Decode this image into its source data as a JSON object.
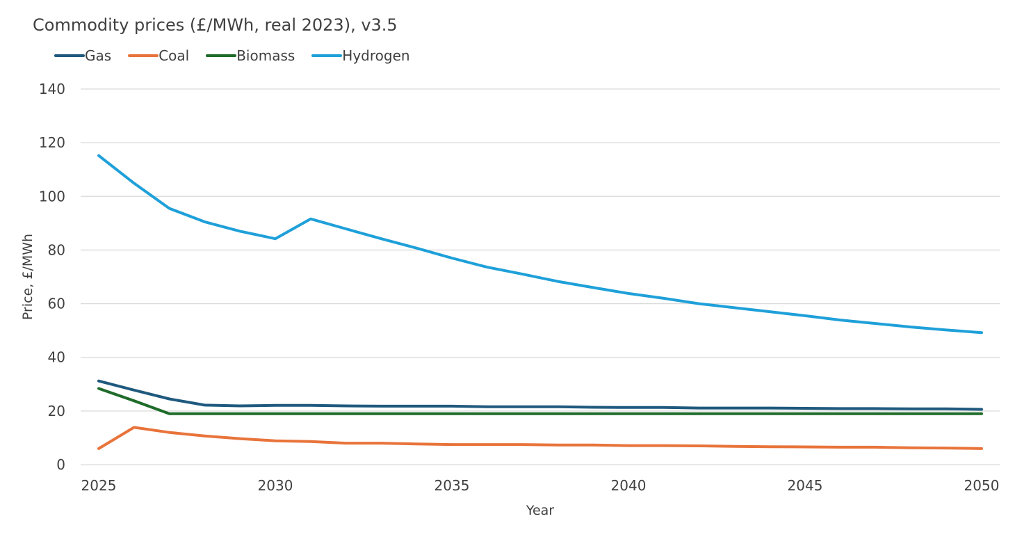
{
  "chart_data": {
    "type": "line",
    "title": "Commodity prices (£/MWh, real 2023), v3.5",
    "xlabel": "Year",
    "ylabel": "Price, £/MWh",
    "xlim": [
      2025,
      2050
    ],
    "ylim": [
      0,
      140
    ],
    "xticks": [
      2025,
      2030,
      2035,
      2040,
      2045,
      2050
    ],
    "yticks": [
      0,
      20,
      40,
      60,
      80,
      100,
      120,
      140
    ],
    "grid": "horizontal",
    "legend_position": "top-left",
    "x": [
      2025,
      2026,
      2027,
      2028,
      2029,
      2030,
      2031,
      2032,
      2033,
      2034,
      2035,
      2036,
      2037,
      2038,
      2039,
      2040,
      2041,
      2042,
      2043,
      2044,
      2045,
      2046,
      2047,
      2048,
      2049,
      2050
    ],
    "series": [
      {
        "name": "Gas",
        "color": "#1f5a7e",
        "values": [
          31.2,
          27.8,
          24.5,
          22.2,
          21.9,
          22.1,
          22.1,
          21.9,
          21.8,
          21.8,
          21.8,
          21.6,
          21.6,
          21.6,
          21.4,
          21.3,
          21.3,
          21.1,
          21.1,
          21.1,
          21.0,
          20.9,
          20.9,
          20.8,
          20.8,
          20.6
        ]
      },
      {
        "name": "Coal",
        "color": "#e8743b",
        "values": [
          6.0,
          13.9,
          12.0,
          10.7,
          9.7,
          8.9,
          8.6,
          8.0,
          8.0,
          7.7,
          7.5,
          7.5,
          7.5,
          7.3,
          7.3,
          7.1,
          7.1,
          7.0,
          6.8,
          6.7,
          6.6,
          6.5,
          6.5,
          6.3,
          6.2,
          6.0
        ]
      },
      {
        "name": "Biomass",
        "color": "#1e6b2a",
        "values": [
          28.4,
          23.8,
          19.0,
          19.0,
          19.0,
          19.0,
          19.0,
          19.0,
          19.0,
          19.0,
          19.0,
          19.0,
          19.0,
          19.0,
          19.0,
          19.0,
          19.0,
          19.0,
          19.0,
          19.0,
          19.0,
          19.0,
          19.0,
          19.0,
          19.0,
          19.0
        ]
      },
      {
        "name": "Hydrogen",
        "color": "#1fa0d8",
        "values": [
          115.2,
          104.9,
          95.5,
          90.5,
          87.0,
          84.2,
          91.6,
          87.9,
          84.2,
          80.7,
          77.0,
          73.6,
          71.0,
          68.3,
          66.0,
          63.8,
          62.0,
          60.0,
          58.5,
          57.0,
          55.5,
          53.9,
          52.6,
          51.3,
          50.2,
          49.2
        ]
      }
    ]
  }
}
